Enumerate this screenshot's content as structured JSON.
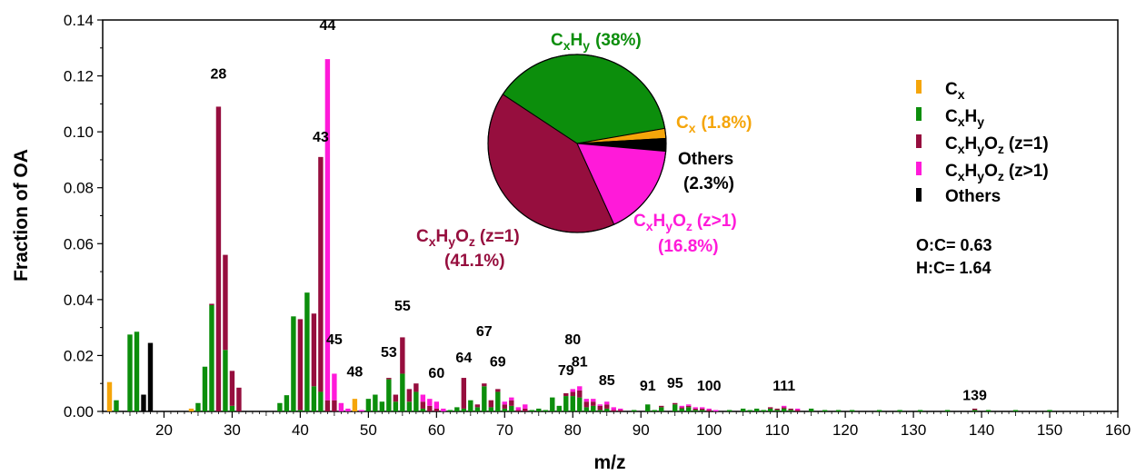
{
  "chart_data": {
    "type": "bar",
    "stacked": true,
    "xlabel": "m/z",
    "ylabel": "Fraction of OA",
    "xlim": [
      11,
      160
    ],
    "ylim": [
      0,
      0.14
    ],
    "xticks": [
      20,
      30,
      40,
      50,
      60,
      70,
      80,
      90,
      100,
      110,
      120,
      130,
      140,
      150,
      160
    ],
    "yticks": [
      "0.00",
      "0.02",
      "0.04",
      "0.06",
      "0.08",
      "0.10",
      "0.12",
      "0.14"
    ],
    "series": [
      {
        "name": "Cx",
        "color": "#f5a50a"
      },
      {
        "name": "CxHy",
        "color": "#0c8e0c"
      },
      {
        "name": "CxHyOz (z=1)",
        "color": "#960e3e"
      },
      {
        "name": "CxHyOz (z>1)",
        "color": "#ff1ad9"
      },
      {
        "name": "Others",
        "color": "#000000"
      }
    ],
    "bars": [
      {
        "mz": 12,
        "v": [
          0.0105,
          0,
          0,
          0,
          0
        ]
      },
      {
        "mz": 13,
        "v": [
          0,
          0.004,
          0,
          0,
          0
        ]
      },
      {
        "mz": 15,
        "v": [
          0,
          0.0275,
          0,
          0,
          0
        ]
      },
      {
        "mz": 16,
        "v": [
          0,
          0.0285,
          0,
          0,
          0
        ]
      },
      {
        "mz": 17,
        "v": [
          0,
          0,
          0,
          0,
          0.006
        ]
      },
      {
        "mz": 18,
        "v": [
          0,
          0,
          0,
          0,
          0.0245
        ]
      },
      {
        "mz": 24,
        "v": [
          0.001,
          0,
          0,
          0,
          0
        ]
      },
      {
        "mz": 25,
        "v": [
          0,
          0.003,
          0,
          0,
          0
        ]
      },
      {
        "mz": 26,
        "v": [
          0,
          0.016,
          0,
          0,
          0
        ]
      },
      {
        "mz": 27,
        "v": [
          0,
          0.038,
          0.0005,
          0,
          0
        ]
      },
      {
        "mz": 28,
        "v": [
          0,
          0,
          0.109,
          0,
          0
        ]
      },
      {
        "mz": 29,
        "v": [
          0,
          0.022,
          0.034,
          0,
          0
        ]
      },
      {
        "mz": 30,
        "v": [
          0,
          0.002,
          0.0125,
          0,
          0
        ]
      },
      {
        "mz": 31,
        "v": [
          0,
          0,
          0.0085,
          0,
          0
        ]
      },
      {
        "mz": 37,
        "v": [
          0,
          0.003,
          0,
          0,
          0
        ]
      },
      {
        "mz": 38,
        "v": [
          0,
          0.0058,
          0,
          0,
          0
        ]
      },
      {
        "mz": 39,
        "v": [
          0,
          0.034,
          0,
          0,
          0
        ]
      },
      {
        "mz": 40,
        "v": [
          0,
          0.0005,
          0.0325,
          0,
          0
        ]
      },
      {
        "mz": 41,
        "v": [
          0,
          0.0425,
          0,
          0,
          0
        ]
      },
      {
        "mz": 42,
        "v": [
          0,
          0.009,
          0.026,
          0,
          0
        ]
      },
      {
        "mz": 43,
        "v": [
          0,
          0.007,
          0.084,
          0,
          0
        ]
      },
      {
        "mz": 44,
        "v": [
          0,
          0,
          0.004,
          0.122,
          0
        ]
      },
      {
        "mz": 45,
        "v": [
          0,
          0,
          0.004,
          0.0095,
          0
        ]
      },
      {
        "mz": 46,
        "v": [
          0,
          0,
          0,
          0.003,
          0
        ]
      },
      {
        "mz": 47,
        "v": [
          0,
          0,
          0,
          0.001,
          0
        ]
      },
      {
        "mz": 48,
        "v": [
          0.0045,
          0,
          0,
          0,
          0
        ]
      },
      {
        "mz": 49,
        "v": [
          0,
          0,
          0,
          0.0005,
          0
        ]
      },
      {
        "mz": 50,
        "v": [
          0,
          0.0045,
          0,
          0,
          0
        ]
      },
      {
        "mz": 51,
        "v": [
          0,
          0.006,
          0,
          0,
          0
        ]
      },
      {
        "mz": 52,
        "v": [
          0,
          0.0035,
          0,
          0,
          0
        ]
      },
      {
        "mz": 53,
        "v": [
          0,
          0.0115,
          0.0005,
          0,
          0
        ]
      },
      {
        "mz": 54,
        "v": [
          0,
          0.0035,
          0.0025,
          0,
          0
        ]
      },
      {
        "mz": 55,
        "v": [
          0,
          0.0135,
          0.013,
          0,
          0
        ]
      },
      {
        "mz": 56,
        "v": [
          0,
          0.0035,
          0.0045,
          0,
          0
        ]
      },
      {
        "mz": 57,
        "v": [
          0,
          0.007,
          0.003,
          0,
          0
        ]
      },
      {
        "mz": 58,
        "v": [
          0,
          0.001,
          0.0025,
          0.0025,
          0
        ]
      },
      {
        "mz": 59,
        "v": [
          0,
          0,
          0.002,
          0.0025,
          0
        ]
      },
      {
        "mz": 60,
        "v": [
          0,
          0,
          0.001,
          0.0025,
          0
        ]
      },
      {
        "mz": 61,
        "v": [
          0,
          0,
          0,
          0.001,
          0
        ]
      },
      {
        "mz": 62,
        "v": [
          0,
          0.0005,
          0,
          0,
          0
        ]
      },
      {
        "mz": 63,
        "v": [
          0,
          0.0015,
          0,
          0,
          0
        ]
      },
      {
        "mz": 64,
        "v": [
          0,
          0.001,
          0.011,
          0,
          0
        ]
      },
      {
        "mz": 65,
        "v": [
          0,
          0.004,
          0,
          0,
          0
        ]
      },
      {
        "mz": 66,
        "v": [
          0,
          0.0015,
          0.001,
          0,
          0
        ]
      },
      {
        "mz": 67,
        "v": [
          0,
          0.009,
          0.001,
          0,
          0
        ]
      },
      {
        "mz": 68,
        "v": [
          0,
          0.0015,
          0.0025,
          0,
          0
        ]
      },
      {
        "mz": 69,
        "v": [
          0,
          0.007,
          0.001,
          0,
          0
        ]
      },
      {
        "mz": 70,
        "v": [
          0,
          0.001,
          0.0015,
          0.001,
          0
        ]
      },
      {
        "mz": 71,
        "v": [
          0,
          0.002,
          0.002,
          0.001,
          0
        ]
      },
      {
        "mz": 72,
        "v": [
          0,
          0,
          0.0005,
          0.001,
          0
        ]
      },
      {
        "mz": 73,
        "v": [
          0,
          0,
          0.001,
          0.0015,
          0
        ]
      },
      {
        "mz": 74,
        "v": [
          0,
          0.0005,
          0,
          0,
          0
        ]
      },
      {
        "mz": 75,
        "v": [
          0,
          0.001,
          0,
          0,
          0
        ]
      },
      {
        "mz": 76,
        "v": [
          0,
          0.0005,
          0,
          0,
          0
        ]
      },
      {
        "mz": 77,
        "v": [
          0,
          0.005,
          0,
          0,
          0
        ]
      },
      {
        "mz": 78,
        "v": [
          0,
          0.002,
          0,
          0,
          0
        ]
      },
      {
        "mz": 79,
        "v": [
          0,
          0.0055,
          0.001,
          0,
          0
        ]
      },
      {
        "mz": 80,
        "v": [
          0,
          0.0055,
          0.0015,
          0.001,
          0
        ]
      },
      {
        "mz": 81,
        "v": [
          0,
          0.005,
          0.0025,
          0.0015,
          0
        ]
      },
      {
        "mz": 82,
        "v": [
          0,
          0.0015,
          0.002,
          0.001,
          0
        ]
      },
      {
        "mz": 83,
        "v": [
          0,
          0.002,
          0.0015,
          0.001,
          0
        ]
      },
      {
        "mz": 84,
        "v": [
          0,
          0.0005,
          0.0015,
          0.0005,
          0
        ]
      },
      {
        "mz": 85,
        "v": [
          0,
          0.001,
          0.0015,
          0.001,
          0
        ]
      },
      {
        "mz": 86,
        "v": [
          0,
          0,
          0.0005,
          0.001,
          0
        ]
      },
      {
        "mz": 87,
        "v": [
          0,
          0,
          0.0005,
          0.0005,
          0
        ]
      },
      {
        "mz": 89,
        "v": [
          0,
          0.0005,
          0,
          0,
          0
        ]
      },
      {
        "mz": 91,
        "v": [
          0,
          0.0025,
          0,
          0,
          0
        ]
      },
      {
        "mz": 92,
        "v": [
          0,
          0.0005,
          0,
          0,
          0
        ]
      },
      {
        "mz": 93,
        "v": [
          0,
          0.0015,
          0.0005,
          0,
          0
        ]
      },
      {
        "mz": 95,
        "v": [
          0,
          0.0025,
          0.0005,
          0,
          0
        ]
      },
      {
        "mz": 96,
        "v": [
          0,
          0.001,
          0.0005,
          0.0005,
          0
        ]
      },
      {
        "mz": 97,
        "v": [
          0,
          0.0015,
          0.0005,
          0.0005,
          0
        ]
      },
      {
        "mz": 98,
        "v": [
          0,
          0.0005,
          0.0005,
          0.0005,
          0
        ]
      },
      {
        "mz": 99,
        "v": [
          0,
          0.0005,
          0.0005,
          0.0005,
          0
        ]
      },
      {
        "mz": 100,
        "v": [
          0,
          0,
          0.0005,
          0.0005,
          0
        ]
      },
      {
        "mz": 101,
        "v": [
          0,
          0,
          0,
          0.0005,
          0
        ]
      },
      {
        "mz": 103,
        "v": [
          0,
          0.0005,
          0,
          0,
          0
        ]
      },
      {
        "mz": 105,
        "v": [
          0,
          0.001,
          0,
          0,
          0
        ]
      },
      {
        "mz": 106,
        "v": [
          0,
          0.0005,
          0,
          0,
          0
        ]
      },
      {
        "mz": 107,
        "v": [
          0,
          0.001,
          0,
          0,
          0
        ]
      },
      {
        "mz": 108,
        "v": [
          0,
          0.0005,
          0,
          0,
          0
        ]
      },
      {
        "mz": 109,
        "v": [
          0,
          0.001,
          0.0005,
          0,
          0
        ]
      },
      {
        "mz": 110,
        "v": [
          0,
          0.0005,
          0.0005,
          0,
          0
        ]
      },
      {
        "mz": 111,
        "v": [
          0,
          0.001,
          0.0005,
          0.0005,
          0
        ]
      },
      {
        "mz": 112,
        "v": [
          0,
          0.0005,
          0.0005,
          0,
          0
        ]
      },
      {
        "mz": 113,
        "v": [
          0,
          0,
          0.0005,
          0.0005,
          0
        ]
      },
      {
        "mz": 115,
        "v": [
          0,
          0.001,
          0,
          0,
          0
        ]
      },
      {
        "mz": 117,
        "v": [
          0,
          0.0005,
          0,
          0,
          0
        ]
      },
      {
        "mz": 119,
        "v": [
          0,
          0.0005,
          0,
          0,
          0
        ]
      },
      {
        "mz": 121,
        "v": [
          0,
          0.0005,
          0,
          0,
          0
        ]
      },
      {
        "mz": 125,
        "v": [
          0,
          0.0005,
          0,
          0,
          0
        ]
      },
      {
        "mz": 128,
        "v": [
          0,
          0.0005,
          0,
          0,
          0
        ]
      },
      {
        "mz": 131,
        "v": [
          0,
          0.0005,
          0,
          0,
          0
        ]
      },
      {
        "mz": 135,
        "v": [
          0,
          0.0005,
          0,
          0,
          0
        ]
      },
      {
        "mz": 139,
        "v": [
          0,
          0.0005,
          0.0005,
          0,
          0
        ]
      },
      {
        "mz": 141,
        "v": [
          0,
          0.0005,
          0,
          0,
          0
        ]
      },
      {
        "mz": 145,
        "v": [
          0,
          0.0005,
          0,
          0,
          0
        ]
      },
      {
        "mz": 150,
        "v": [
          0,
          0.0005,
          0,
          0,
          0
        ]
      }
    ],
    "peak_labels": [
      {
        "mz": 28,
        "text": "28",
        "y": 0.119
      },
      {
        "mz": 43,
        "text": "43",
        "y": 0.0965
      },
      {
        "mz": 44,
        "text": "44",
        "y": 0.1365
      },
      {
        "mz": 45,
        "text": "45",
        "y": 0.024
      },
      {
        "mz": 48,
        "text": "48",
        "y": 0.0125
      },
      {
        "mz": 53,
        "text": "53",
        "y": 0.0195
      },
      {
        "mz": 55,
        "text": "55",
        "y": 0.036
      },
      {
        "mz": 60,
        "text": "60",
        "y": 0.012
      },
      {
        "mz": 64,
        "text": "64",
        "y": 0.0175
      },
      {
        "mz": 67,
        "text": "67",
        "y": 0.027
      },
      {
        "mz": 69,
        "text": "69",
        "y": 0.016
      },
      {
        "mz": 79,
        "text": "79",
        "y": 0.013
      },
      {
        "mz": 80,
        "text": "80",
        "y": 0.024
      },
      {
        "mz": 81,
        "text": "81",
        "y": 0.016
      },
      {
        "mz": 85,
        "text": "85",
        "y": 0.0095
      },
      {
        "mz": 91,
        "text": "91",
        "y": 0.0075
      },
      {
        "mz": 95,
        "text": "95",
        "y": 0.0085
      },
      {
        "mz": 100,
        "text": "100",
        "y": 0.0075
      },
      {
        "mz": 111,
        "text": "111",
        "y": 0.0075
      },
      {
        "mz": 139,
        "text": "139",
        "y": 0.004
      }
    ],
    "pie": {
      "slices": [
        {
          "name": "CxHy",
          "value": 38,
          "color": "#0c8e0c"
        },
        {
          "name": "Cx",
          "value": 1.8,
          "color": "#f5a50a"
        },
        {
          "name": "Others",
          "value": 2.3,
          "color": "#000000"
        },
        {
          "name": "CxHyOz (z>1)",
          "value": 16.8,
          "color": "#ff1ad9"
        },
        {
          "name": "CxHyOz (z=1)",
          "value": 41.1,
          "color": "#960e3e"
        }
      ]
    },
    "ratios": {
      "oc": "O:C= 0.63",
      "hc": "H:C= 1.64"
    },
    "legend_position": "right"
  },
  "labels": {
    "pie_cxhy_pct": "(38%)",
    "pie_cx_pct": "(1.8%)",
    "pie_others": "Others",
    "pie_others_pct": "(2.3%)",
    "pie_z1_pct": "(41.1%)",
    "pie_zgt1_pct": "(16.8%)",
    "z_eq_1": "(z=1)",
    "z_gt_1": "(z>1)",
    "legend_others": "Others"
  }
}
